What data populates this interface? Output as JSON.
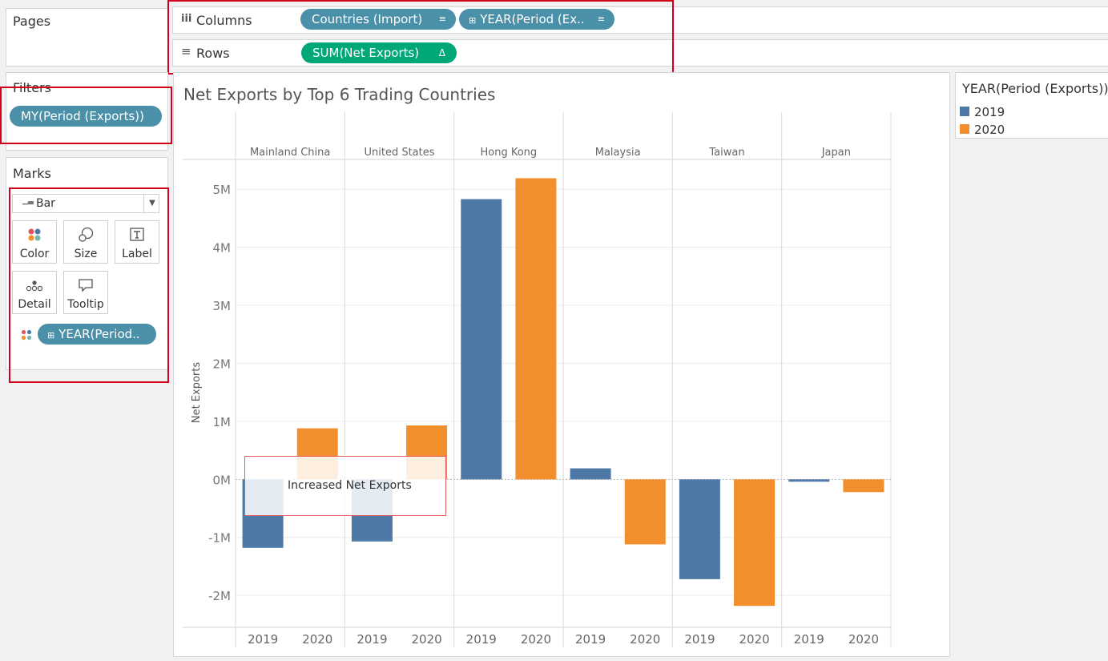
{
  "pages": {
    "title": "Pages"
  },
  "shelves": {
    "columns": {
      "icon": "columns-icon",
      "label": "Columns",
      "pills": [
        {
          "text": "Countries (Import)",
          "icon": "sort-icon"
        },
        {
          "text": "YEAR(Period (Ex..",
          "icon": "sort-icon"
        }
      ]
    },
    "rows": {
      "icon": "rows-icon",
      "label": "Rows",
      "pills": [
        {
          "text": "SUM(Net Exports)",
          "icon": "delta-icon"
        }
      ]
    }
  },
  "filters": {
    "title": "Filters",
    "pill": "MY(Period (Exports))"
  },
  "marks": {
    "title": "Marks",
    "mark_type": "Bar",
    "cards": [
      {
        "label": "Color",
        "icon": "color-icon"
      },
      {
        "label": "Size",
        "icon": "size-icon"
      },
      {
        "label": "Label",
        "icon": "label-icon"
      },
      {
        "label": "Detail",
        "icon": "detail-icon"
      },
      {
        "label": "Tooltip",
        "icon": "tooltip-icon"
      }
    ],
    "field_pill": "YEAR(Period.."
  },
  "legend": {
    "title": "YEAR(Period (Exports))",
    "items": [
      {
        "label": "2019",
        "color": "#4e79a7"
      },
      {
        "label": "2020",
        "color": "#f28e2b"
      }
    ]
  },
  "annotation": {
    "text": "Increased Net Exports"
  },
  "chart_data": {
    "type": "bar",
    "title": "Net Exports by Top 6 Trading Countries",
    "ylabel": "Net Exports",
    "categories": [
      "Mainland China",
      "United States",
      "Hong Kong",
      "Malaysia",
      "Taiwan",
      "Japan"
    ],
    "series": [
      {
        "name": "2019",
        "color": "#4e79a7",
        "values": [
          -1180000,
          -1070000,
          4830000,
          190000,
          -1720000,
          -40000
        ]
      },
      {
        "name": "2020",
        "color": "#f28e2b",
        "values": [
          880000,
          930000,
          5190000,
          -1120000,
          -2180000,
          -220000
        ]
      }
    ],
    "ylim": [
      -2550000,
      5500000
    ],
    "yticks": [
      -2000000,
      -1000000,
      0,
      1000000,
      2000000,
      3000000,
      4000000,
      5000000
    ],
    "ytick_labels": [
      "-2M",
      "-1M",
      "0M",
      "1M",
      "2M",
      "3M",
      "4M",
      "5M"
    ],
    "grid": true
  }
}
